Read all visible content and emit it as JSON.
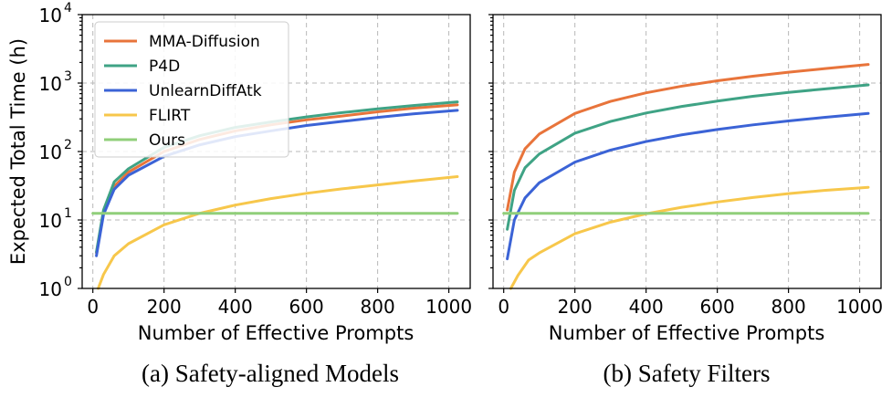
{
  "chart_data": [
    {
      "type": "line",
      "caption": "(a) Safety-aligned Models",
      "xlabel": "Number of Effective Prompts",
      "ylabel": "Expected Total Time (h)",
      "yscale": "log",
      "ylim": [
        1,
        10000
      ],
      "xlim": [
        -30,
        1060
      ],
      "grid": true,
      "legend_position": "top-left",
      "x_ticks": [
        0,
        200,
        400,
        600,
        800,
        1000
      ],
      "x_tick_labels": [
        "0",
        "200",
        "400",
        "600",
        "800",
        "1000"
      ],
      "y_ticks": [
        1,
        10,
        100,
        1000,
        10000
      ],
      "y_tick_base": "10",
      "y_tick_exponents": [
        "0",
        "1",
        "2",
        "3",
        "4"
      ],
      "series": [
        {
          "name": "MMA-Diffusion",
          "color": "#e8743b",
          "x": [
            10,
            30,
            60,
            100,
            200,
            300,
            400,
            500,
            600,
            700,
            800,
            900,
            1024
          ],
          "y": [
            3.3,
            13,
            31,
            50,
            100,
            150,
            200,
            245,
            290,
            330,
            380,
            430,
            480
          ]
        },
        {
          "name": "P4D",
          "color": "#3fa385",
          "x": [
            10,
            30,
            60,
            100,
            200,
            300,
            400,
            500,
            600,
            700,
            800,
            900,
            1024
          ],
          "y": [
            3.4,
            14,
            36,
            56,
            115,
            170,
            225,
            270,
            320,
            370,
            420,
            470,
            530
          ]
        },
        {
          "name": "UnlearnDiffAtk",
          "color": "#3b63d6",
          "x": [
            10,
            30,
            60,
            100,
            200,
            300,
            400,
            500,
            600,
            700,
            800,
            900,
            1024
          ],
          "y": [
            3.0,
            12,
            28,
            45,
            85,
            125,
            165,
            200,
            240,
            275,
            315,
            355,
            400
          ]
        },
        {
          "name": "FLIRT",
          "color": "#f7c74b",
          "x": [
            15,
            30,
            60,
            100,
            200,
            300,
            400,
            500,
            600,
            700,
            800,
            900,
            1024
          ],
          "y": [
            1.0,
            1.6,
            3.0,
            4.5,
            8.5,
            12.5,
            16.5,
            20.5,
            24.5,
            28.5,
            32.5,
            37,
            43
          ]
        },
        {
          "name": "Ours",
          "color": "#90cf7a",
          "x": [
            0,
            1024
          ],
          "y": [
            12.5,
            12.5
          ]
        }
      ]
    },
    {
      "type": "line",
      "caption": "(b) Safety Filters",
      "xlabel": "Number of Effective Prompts",
      "ylabel": "",
      "yscale": "log",
      "ylim": [
        1,
        10000
      ],
      "xlim": [
        -30,
        1060
      ],
      "grid": true,
      "x_ticks": [
        0,
        200,
        400,
        600,
        800,
        1000
      ],
      "x_tick_labels": [
        "0",
        "200",
        "400",
        "600",
        "800",
        "1000"
      ],
      "y_ticks": [
        1,
        10,
        100,
        1000,
        10000
      ],
      "series": [
        {
          "name": "MMA-Diffusion",
          "color": "#e8743b",
          "x": [
            10,
            30,
            60,
            100,
            200,
            300,
            400,
            500,
            600,
            700,
            800,
            900,
            1024
          ],
          "y": [
            14,
            50,
            110,
            180,
            360,
            540,
            720,
            900,
            1080,
            1260,
            1440,
            1620,
            1870
          ]
        },
        {
          "name": "P4D",
          "color": "#3fa385",
          "x": [
            10,
            30,
            60,
            100,
            200,
            300,
            400,
            500,
            600,
            700,
            800,
            900,
            1024
          ],
          "y": [
            7.3,
            27,
            58,
            92,
            185,
            275,
            365,
            455,
            545,
            640,
            730,
            820,
            940
          ]
        },
        {
          "name": "UnlearnDiffAtk",
          "color": "#3b63d6",
          "x": [
            10,
            30,
            60,
            100,
            200,
            300,
            400,
            500,
            600,
            700,
            800,
            900,
            1024
          ],
          "y": [
            2.7,
            10,
            21,
            35,
            70,
            105,
            140,
            175,
            210,
            245,
            280,
            315,
            360
          ]
        },
        {
          "name": "FLIRT",
          "color": "#f7c74b",
          "x": [
            20,
            40,
            70,
            100,
            200,
            300,
            400,
            500,
            600,
            700,
            800,
            900,
            1024
          ],
          "y": [
            1.0,
            1.55,
            2.6,
            3.3,
            6.3,
            9.3,
            12.3,
            15.3,
            18.3,
            21.3,
            24.3,
            27,
            30
          ]
        },
        {
          "name": "Ours",
          "color": "#90cf7a",
          "x": [
            0,
            1024
          ],
          "y": [
            12.5,
            12.5
          ]
        }
      ]
    }
  ]
}
